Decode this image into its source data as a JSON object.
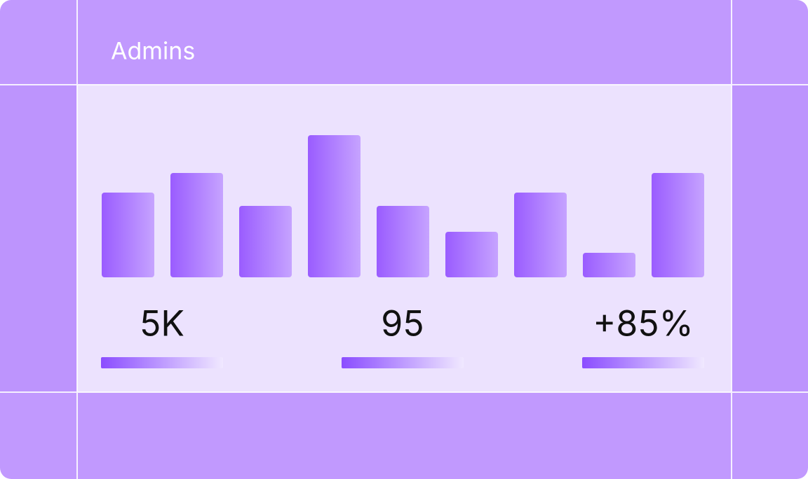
{
  "header": {
    "title": "Admins"
  },
  "chart_data": {
    "type": "bar",
    "values": [
      121,
      149,
      102,
      203,
      102,
      65,
      121,
      35,
      149
    ],
    "ylim": [
      0,
      203
    ],
    "color": "#9a5cff"
  },
  "stats": [
    "5K",
    "95",
    "+85%"
  ]
}
